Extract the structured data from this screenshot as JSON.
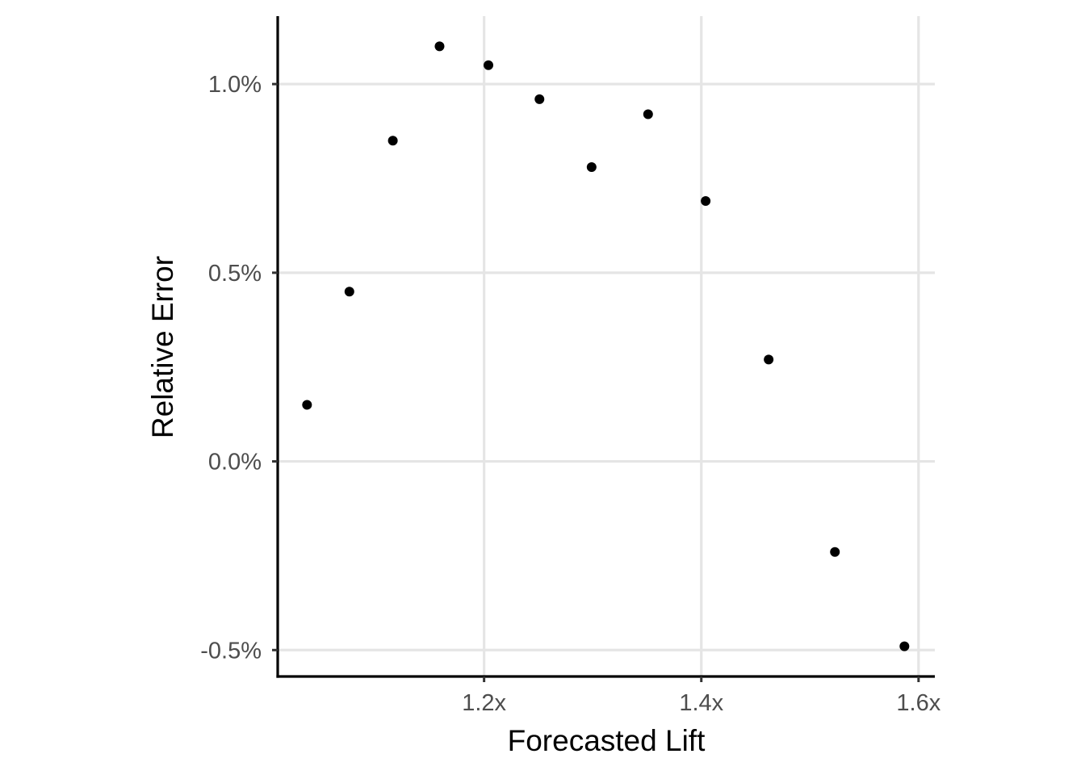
{
  "chart_data": {
    "type": "scatter",
    "title": "",
    "xlabel": "Forecasted Lift",
    "ylabel": "Relative Error",
    "x_ticks": [
      {
        "value": 1.2,
        "label": "1.2x"
      },
      {
        "value": 1.4,
        "label": "1.4x"
      },
      {
        "value": 1.6,
        "label": "1.6x"
      }
    ],
    "y_ticks": [
      {
        "value": -0.005,
        "label": "-0.5%"
      },
      {
        "value": 0.0,
        "label": "0.0%"
      },
      {
        "value": 0.005,
        "label": "0.5%"
      },
      {
        "value": 0.01,
        "label": "1.0%"
      }
    ],
    "xlim": [
      1.01,
      1.615
    ],
    "ylim": [
      -0.0057,
      0.0118
    ],
    "grid": true,
    "points": [
      {
        "x": 1.037,
        "y": 0.0015
      },
      {
        "x": 1.076,
        "y": 0.0045
      },
      {
        "x": 1.116,
        "y": 0.0085
      },
      {
        "x": 1.159,
        "y": 0.011
      },
      {
        "x": 1.204,
        "y": 0.0105
      },
      {
        "x": 1.251,
        "y": 0.0096
      },
      {
        "x": 1.299,
        "y": 0.0078
      },
      {
        "x": 1.351,
        "y": 0.0092
      },
      {
        "x": 1.404,
        "y": 0.0069
      },
      {
        "x": 1.462,
        "y": 0.0027
      },
      {
        "x": 1.523,
        "y": -0.0024
      },
      {
        "x": 1.587,
        "y": -0.0049
      }
    ],
    "point_color": "#000000"
  }
}
